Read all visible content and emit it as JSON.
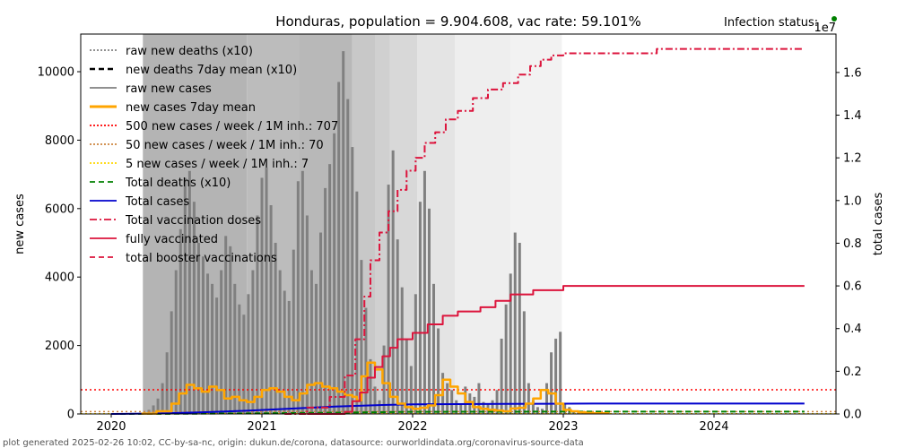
{
  "footer": "plot generated 2025-02-26 10:02, CC-by-sa-nc, origin: dukun.de/corona, datasource: ourworldindata.org/coronavirus-source-data",
  "chart_data": {
    "type": "line",
    "title": "Honduras, population = 9.904.608, vac rate: 59.101%",
    "status_label": "Infection status:",
    "status_color": "#008000",
    "xlabel": "",
    "ylabel_left": "new cases",
    "ylabel_right": "total cases",
    "right_axis_multiplier": "1e7",
    "xlim": [
      2019.8,
      2024.85
    ],
    "ylim_left": [
      0,
      11100
    ],
    "ylim_right": [
      0,
      1.78
    ],
    "x_ticks": [
      "2020",
      "2021",
      "2022",
      "2023",
      "2024"
    ],
    "y_ticks_left": [
      "0",
      "2000",
      "4000",
      "6000",
      "8000",
      "10000"
    ],
    "y_ticks_right": [
      "0.0",
      "0.2",
      "0.4",
      "0.6",
      "0.8",
      "1.0",
      "1.2",
      "1.4",
      "1.6"
    ],
    "grid": false,
    "legend_position": "top-left",
    "legend": [
      {
        "label": "raw new deaths (x10)",
        "color": "#808080",
        "style": "dotted"
      },
      {
        "label": "new deaths 7day mean (x10)",
        "color": "#000000",
        "style": "dashed"
      },
      {
        "label": "raw new cases",
        "color": "#808080",
        "style": "solid"
      },
      {
        "label": "new cases 7day mean",
        "color": "#ffa500",
        "style": "solid-thick"
      },
      {
        "label": "500 new cases / week / 1M inh.: 707",
        "color": "#ff0000",
        "style": "dotted"
      },
      {
        "label": "50 new cases / week / 1M inh.: 70",
        "color": "#cd853f",
        "style": "dotted"
      },
      {
        "label": "5 new cases / week / 1M inh.: 7",
        "color": "#ffd700",
        "style": "dotted"
      },
      {
        "label": "Total deaths (x10)",
        "color": "#008000",
        "style": "dashed"
      },
      {
        "label": "Total cases",
        "color": "#0000cd",
        "style": "solid"
      },
      {
        "label": "Total vaccination doses",
        "color": "#dc143c",
        "style": "dashdot"
      },
      {
        "label": "fully vaccinated",
        "color": "#dc143c",
        "style": "solid"
      },
      {
        "label": "total booster vaccinations",
        "color": "#dc143c",
        "style": "dashed"
      }
    ],
    "thresholds": [
      {
        "name": "500 per week per 1M",
        "value": 707,
        "color": "#ff0000"
      },
      {
        "name": "50 per week per 1M",
        "value": 70,
        "color": "#cd853f"
      },
      {
        "name": "5 per week per 1M",
        "value": 7,
        "color": "#ffd700"
      }
    ],
    "background_bands": [
      {
        "from": 2020.21,
        "to": 2020.9,
        "gray": "#b4b4b4"
      },
      {
        "from": 2020.9,
        "to": 2021.25,
        "gray": "#bcbcbc"
      },
      {
        "from": 2021.25,
        "to": 2021.6,
        "gray": "#b8b8b8"
      },
      {
        "from": 2021.6,
        "to": 2021.75,
        "gray": "#c8c8c8"
      },
      {
        "from": 2021.75,
        "to": 2021.85,
        "gray": "#d0d0d0"
      },
      {
        "from": 2021.85,
        "to": 2022.03,
        "gray": "#d8d8d8"
      },
      {
        "from": 2022.03,
        "to": 2022.28,
        "gray": "#e4e4e4"
      },
      {
        "from": 2022.28,
        "to": 2022.65,
        "gray": "#eeeeee"
      },
      {
        "from": 2022.65,
        "to": 2022.99,
        "gray": "#f2f2f2"
      }
    ],
    "raw_new_cases": {
      "x": [
        2020.22,
        2020.25,
        2020.28,
        2020.31,
        2020.34,
        2020.37,
        2020.4,
        2020.43,
        2020.46,
        2020.49,
        2020.52,
        2020.55,
        2020.58,
        2020.61,
        2020.64,
        2020.67,
        2020.7,
        2020.73,
        2020.76,
        2020.79,
        2020.82,
        2020.85,
        2020.88,
        2020.91,
        2020.94,
        2020.97,
        2021.0,
        2021.03,
        2021.06,
        2021.09,
        2021.12,
        2021.15,
        2021.18,
        2021.21,
        2021.24,
        2021.27,
        2021.3,
        2021.33,
        2021.36,
        2021.39,
        2021.42,
        2021.45,
        2021.48,
        2021.51,
        2021.54,
        2021.57,
        2021.6,
        2021.63,
        2021.66,
        2021.69,
        2021.72,
        2021.75,
        2021.78,
        2021.81,
        2021.84,
        2021.87,
        2021.9,
        2021.93,
        2021.96,
        2021.99,
        2022.02,
        2022.05,
        2022.08,
        2022.11,
        2022.14,
        2022.17,
        2022.2,
        2022.23,
        2022.26,
        2022.29,
        2022.32,
        2022.35,
        2022.38,
        2022.41,
        2022.44,
        2022.47,
        2022.5,
        2022.53,
        2022.56,
        2022.59,
        2022.62,
        2022.65,
        2022.68,
        2022.71,
        2022.74,
        2022.77,
        2022.8,
        2022.83,
        2022.86,
        2022.89,
        2022.92,
        2022.95,
        2022.98,
        2023.01,
        2023.04,
        2023.07,
        2023.1,
        2023.13,
        2023.16,
        2023.19
      ],
      "values": [
        50,
        120,
        250,
        450,
        900,
        1800,
        3000,
        4200,
        5400,
        6900,
        7100,
        6200,
        5000,
        4600,
        4100,
        3800,
        3400,
        4200,
        5200,
        4900,
        3800,
        3200,
        2900,
        3500,
        4200,
        5800,
        6900,
        7200,
        6100,
        5000,
        4200,
        3600,
        3300,
        4800,
        6800,
        7100,
        5800,
        4200,
        3800,
        5300,
        6600,
        7300,
        8200,
        9700,
        10600,
        9200,
        7800,
        6500,
        4500,
        3100,
        1600,
        800,
        400,
        2000,
        6700,
        7700,
        5100,
        3700,
        2200,
        1400,
        3500,
        6200,
        7100,
        6000,
        3800,
        2500,
        1200,
        900,
        700,
        400,
        300,
        800,
        600,
        500,
        900,
        350,
        300,
        400,
        700,
        2200,
        3200,
        4100,
        5300,
        5000,
        3000,
        900,
        400,
        200,
        150,
        900,
        1800,
        2200,
        2400,
        300,
        200,
        100,
        80,
        60,
        50,
        40
      ]
    },
    "new_cases_7day_mean": {
      "x": [
        2020.2,
        2020.3,
        2020.4,
        2020.45,
        2020.5,
        2020.55,
        2020.6,
        2020.65,
        2020.7,
        2020.75,
        2020.8,
        2020.85,
        2020.9,
        2020.95,
        2021.0,
        2021.05,
        2021.1,
        2021.15,
        2021.2,
        2021.25,
        2021.3,
        2021.35,
        2021.4,
        2021.45,
        2021.5,
        2021.55,
        2021.6,
        2021.63,
        2021.66,
        2021.7,
        2021.75,
        2021.8,
        2021.85,
        2021.9,
        2021.95,
        2022.0,
        2022.05,
        2022.1,
        2022.15,
        2022.2,
        2022.25,
        2022.3,
        2022.35,
        2022.4,
        2022.45,
        2022.5,
        2022.55,
        2022.6,
        2022.65,
        2022.7,
        2022.75,
        2022.8,
        2022.85,
        2022.9,
        2022.95,
        2023.0,
        2023.05,
        2023.1,
        2023.15,
        2023.2,
        2023.3
      ],
      "values": [
        10,
        80,
        300,
        600,
        850,
        750,
        650,
        800,
        700,
        450,
        500,
        400,
        350,
        500,
        700,
        750,
        650,
        500,
        400,
        600,
        850,
        900,
        800,
        750,
        650,
        550,
        500,
        400,
        1100,
        1500,
        1300,
        900,
        500,
        300,
        200,
        150,
        180,
        250,
        550,
        1000,
        800,
        600,
        350,
        200,
        150,
        120,
        100,
        80,
        160,
        180,
        300,
        450,
        700,
        600,
        300,
        120,
        80,
        50,
        30,
        20,
        10
      ]
    },
    "total_cases_1e7": {
      "x": [
        2020.0,
        2020.3,
        2020.6,
        2020.9,
        2021.2,
        2021.5,
        2021.8,
        2022.0,
        2022.3,
        2022.6,
        2022.9,
        2023.2,
        2024.6
      ],
      "values": [
        0.0,
        0.002,
        0.008,
        0.015,
        0.025,
        0.035,
        0.042,
        0.045,
        0.046,
        0.047,
        0.048,
        0.049,
        0.049
      ]
    },
    "total_deaths_x10_1e7": {
      "x": [
        2020.0,
        2020.5,
        2021.0,
        2021.5,
        2022.0,
        2023.0,
        2024.6
      ],
      "values": [
        0.0,
        0.001,
        0.003,
        0.006,
        0.01,
        0.011,
        0.011
      ]
    },
    "total_vaccination_doses_1e7": {
      "x": [
        2021.15,
        2021.3,
        2021.45,
        2021.55,
        2021.62,
        2021.68,
        2021.72,
        2021.78,
        2021.84,
        2021.9,
        2021.96,
        2022.02,
        2022.08,
        2022.15,
        2022.22,
        2022.3,
        2022.4,
        2022.5,
        2022.6,
        2022.7,
        2022.78,
        2022.85,
        2022.92,
        2023.0,
        2023.3,
        2023.6,
        2023.62,
        2024.6
      ],
      "values": [
        0.0,
        0.03,
        0.08,
        0.18,
        0.35,
        0.55,
        0.72,
        0.85,
        0.95,
        1.05,
        1.14,
        1.2,
        1.27,
        1.32,
        1.38,
        1.42,
        1.48,
        1.52,
        1.55,
        1.59,
        1.63,
        1.66,
        1.68,
        1.69,
        1.69,
        1.69,
        1.71,
        1.71
      ]
    },
    "fully_vaccinated_1e7": {
      "x": [
        2021.3,
        2021.55,
        2021.6,
        2021.65,
        2021.7,
        2021.75,
        2021.8,
        2021.85,
        2021.9,
        2022.0,
        2022.1,
        2022.2,
        2022.3,
        2022.45,
        2022.55,
        2022.65,
        2022.8,
        2023.0,
        2023.3,
        2024.6
      ],
      "values": [
        0.0,
        0.01,
        0.06,
        0.1,
        0.17,
        0.22,
        0.27,
        0.31,
        0.35,
        0.38,
        0.42,
        0.46,
        0.48,
        0.5,
        0.53,
        0.56,
        0.58,
        0.6,
        0.6,
        0.6
      ]
    }
  }
}
